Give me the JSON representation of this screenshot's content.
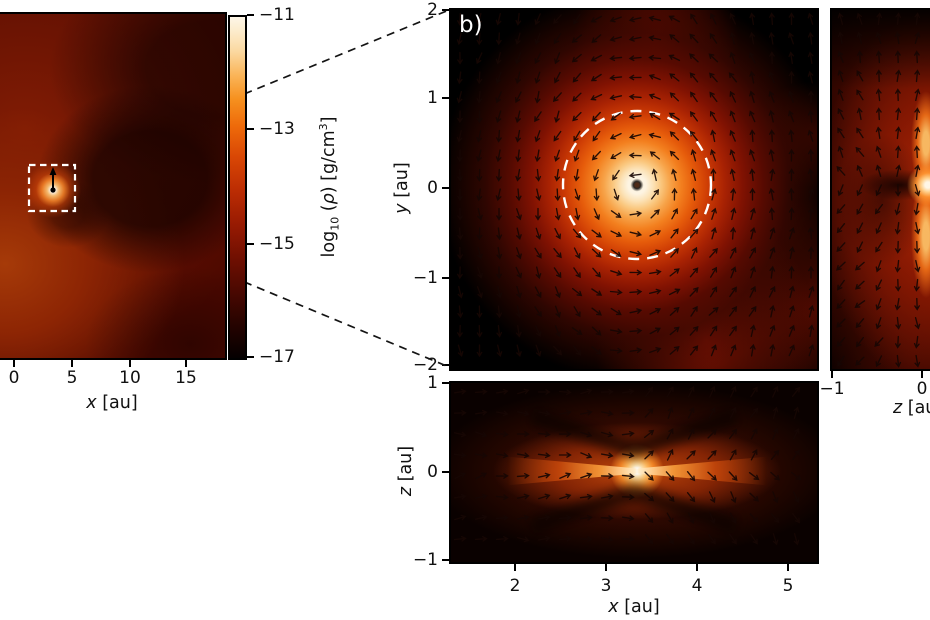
{
  "figure": {
    "overview": {
      "xticks": [
        "0",
        "5",
        "10",
        "15"
      ],
      "xlabel": {
        "var": "x",
        "unit": " [au]"
      }
    },
    "colorbar": {
      "ticks": [
        "−11",
        "−13",
        "−15",
        "−17"
      ],
      "label": {
        "p1": "log",
        "sub": "10",
        "p2": " (",
        "rho": "ρ",
        "p3": ") [g/cm",
        "sup": "3",
        "p4": "]"
      }
    },
    "panel_b": {
      "tag": "b)",
      "yticks": [
        "2",
        "1",
        "0",
        "−1",
        "−2"
      ],
      "ylabel": {
        "var": "y",
        "unit": " [au]"
      }
    },
    "panel_xz": {
      "yticks": [
        "1",
        "0",
        "−1"
      ],
      "xticks": [
        "2",
        "3",
        "4",
        "5"
      ],
      "ylabel": {
        "var": "z",
        "unit": " [au]"
      },
      "xlabel": {
        "var": "x",
        "unit": " [au]"
      }
    },
    "panel_zy": {
      "xticks": [
        "−1",
        "0"
      ],
      "xlabel": {
        "var": "z",
        "unit": " [au]"
      }
    },
    "quiver": {
      "color": "#170603"
    },
    "accents": {
      "dashed_box": "#ffffff",
      "dashed_circle": "#ffffff",
      "connector": "#141414",
      "frame": "#000000"
    }
  },
  "chart_data": [
    {
      "type": "heatmap",
      "id": "overview_face_on_disc",
      "quantity": "log10 density [g/cm^3]",
      "value_range": [
        -17,
        -11
      ],
      "xlabel": "x [au]",
      "xticks": [
        0,
        5,
        10,
        15
      ],
      "x_range_au": [
        -1.2,
        18.3
      ],
      "colormap": "black → dark red → orange → white (gist_heat-like)",
      "features": {
        "planet_position_au": {
          "x": 3.35,
          "y": 0
        },
        "planet_marker": "black sink dot with upward velocity arrow",
        "zoom_box_au": {
          "x": [
            1.3,
            5.35
          ],
          "y": [
            -2,
            2
          ]
        },
        "morphology": "circumstellar disc with spiral arm shadows, bright circumplanetary blob"
      }
    },
    {
      "type": "heatmap",
      "id": "panel_b_xy_zoom",
      "label": "b)",
      "ylabel": "y [au]",
      "yticks": [
        2,
        1,
        0,
        -1,
        -2
      ],
      "y_range_au": [
        -2,
        2
      ],
      "x_range_au": [
        1.3,
        5.35
      ],
      "quiver": "velocity field arrows, counterclockwise rotation around planet",
      "features": {
        "planet_au": {
          "x": 3.35,
          "y": 0
        },
        "dashed_circle_radius_au": 0.8,
        "peak_log10_rho": -11,
        "morphology": "bright face-on circumplanetary disc, red accretion streams to top and bottom-right"
      }
    },
    {
      "type": "heatmap",
      "id": "panel_xz_edge_on",
      "xlabel": "x [au]",
      "xticks": [
        2,
        3,
        4,
        5
      ],
      "ylabel": "z [au]",
      "yticks": [
        1,
        0,
        -1
      ],
      "x_range_au": [
        1.3,
        5.35
      ],
      "z_range_au": [
        -1,
        1
      ],
      "quiver": "velocity arrows converging toward midplane / diverging outward",
      "features": {
        "planet_au": {
          "x": 3.35,
          "z": 0
        },
        "morphology": "edge-on circumplanetary disc: bright white core with horizontal bowtie wings and dark polar lanes"
      }
    },
    {
      "type": "heatmap",
      "id": "panel_zy_side_view",
      "xlabel": "z [au]",
      "xticks": [
        -1,
        0
      ],
      "z_range_visible_au": [
        -1.1,
        0.1
      ],
      "y_range_au": [
        -2,
        2
      ],
      "quiver": "velocity arrows, vertical outflow along disc axis",
      "features": {
        "planet_au": {
          "z": 0,
          "y": 0
        },
        "morphology": "side view: bright core at z≈0 with vertical flares above/below, dark lanes, red envelope (right part cropped)"
      }
    },
    {
      "type": "colorbar",
      "label": "log10(ρ) [g/cm³]",
      "ticks": [
        -11,
        -13,
        -15,
        -17
      ],
      "range": [
        -17,
        -11
      ],
      "orientation": "vertical"
    }
  ]
}
